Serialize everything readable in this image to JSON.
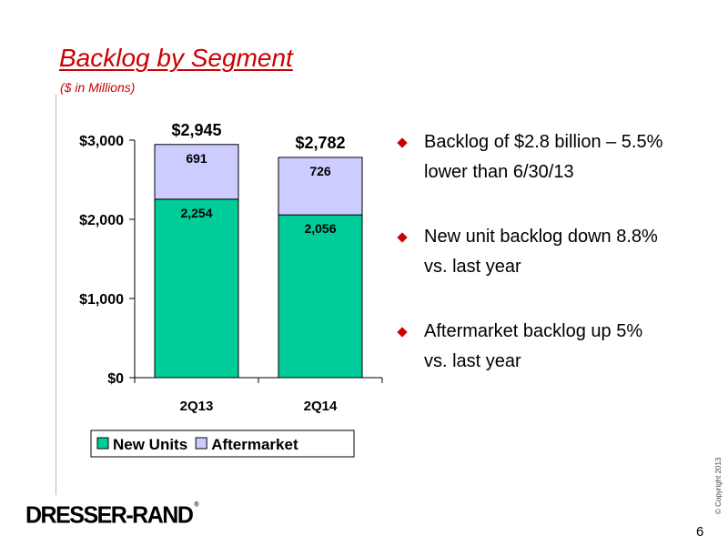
{
  "slide": {
    "title": "Backlog by Segment",
    "subtitle": "($ in Millions)",
    "bullets": [
      "Backlog of $2.8 billion – 5.5% lower than 6/30/13",
      "New unit backlog down 8.8% vs. last year",
      "Aftermarket backlog up 5% vs. last year"
    ],
    "logo_text": "DRESSER-RAND",
    "logo_mark": "®",
    "copyright": "© Copyright 2013",
    "page_number": "6",
    "accent_color": "#cc0000"
  },
  "chart_data": {
    "type": "bar",
    "stacked": true,
    "categories": [
      "2Q13",
      "2Q14"
    ],
    "series": [
      {
        "name": "New Units",
        "values": [
          2254,
          2056
        ],
        "labels": [
          "2,254",
          "2,056"
        ],
        "color": "#00cc99"
      },
      {
        "name": "Aftermarket",
        "values": [
          691,
          726
        ],
        "labels": [
          "691",
          "726"
        ],
        "color": "#ccccff"
      }
    ],
    "totals": [
      2945,
      2782
    ],
    "total_labels": [
      "$2,945",
      "$2,782"
    ],
    "yticks": [
      0,
      1000,
      2000,
      3000
    ],
    "ytick_labels": [
      "$0",
      "$1,000",
      "$2,000",
      "$3,000"
    ],
    "ylim": [
      0,
      3000
    ],
    "legend": "bottom",
    "grid": false
  }
}
